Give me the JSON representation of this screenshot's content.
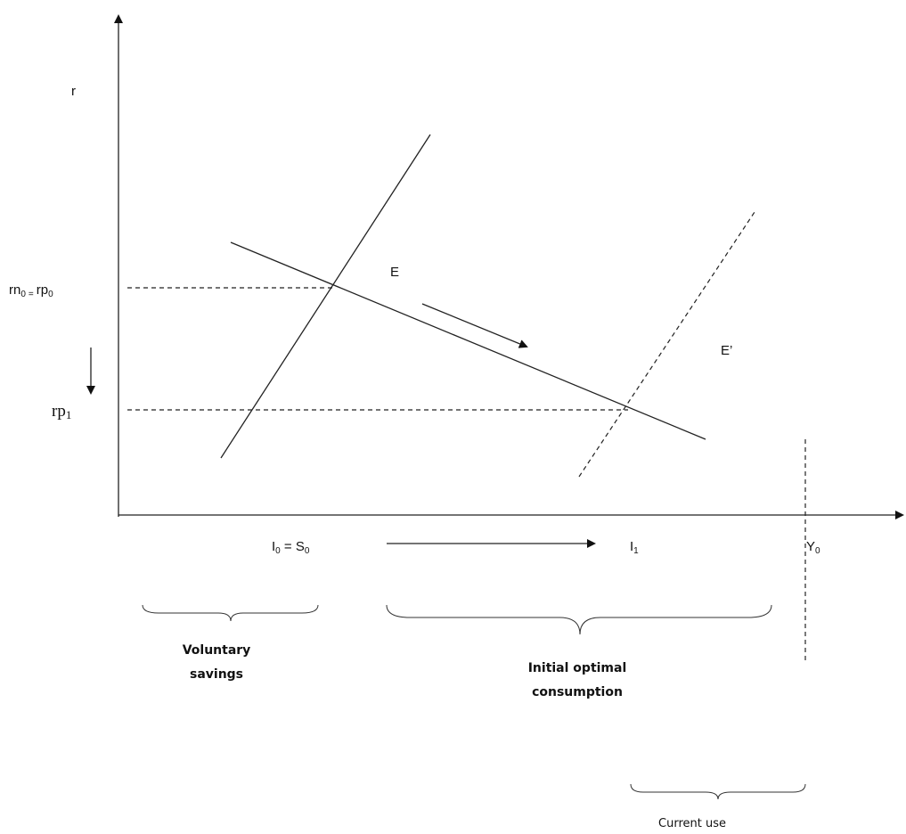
{
  "axes": {
    "y_label": "r",
    "x_label": ""
  },
  "labels": {
    "rn0_main": "rn",
    "rn0_sub": "0",
    "eq_small": "=",
    "rp0_main": "rp",
    "rp0_sub": "0",
    "rp1_main": "rp",
    "rp1_sub": "1",
    "E": "E",
    "E_prime": "E’",
    "I0_main": "I",
    "I0_sub": "0",
    "I0_eq": " = S",
    "S0_sub": "0",
    "I1_main": "I",
    "I1_sub": "1",
    "Y0_main": "Y",
    "Y0_sub": "0"
  },
  "braces": {
    "voluntary_line1": "Voluntary",
    "voluntary_line2": "savings",
    "initial_line1": "Initial optimal",
    "initial_line2": "consumption",
    "current": "Current use"
  }
}
